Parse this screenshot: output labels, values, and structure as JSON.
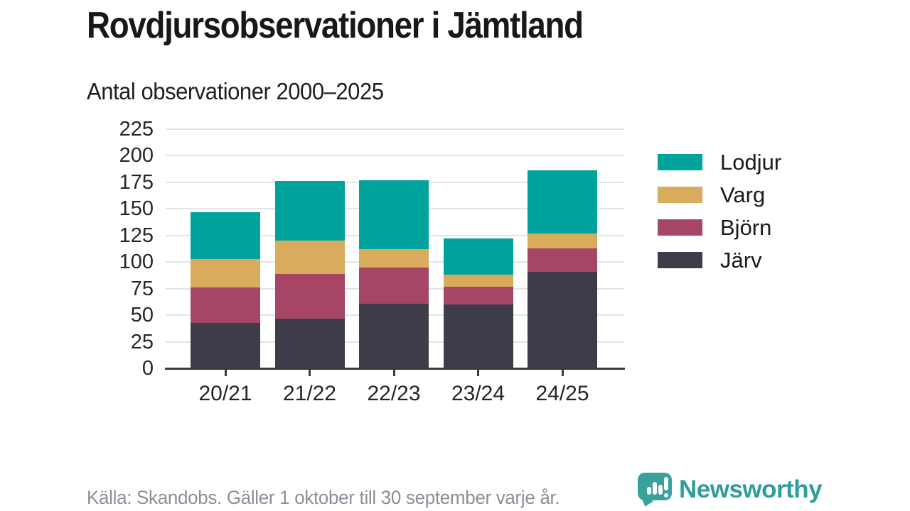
{
  "header": {
    "title": "Rovdjursobservationer i Jämtland",
    "subtitle": "Antal observationer 2000–2025"
  },
  "footer": {
    "source": "Källa: Skandobs. Gäller 1 oktober till 30 september varje år."
  },
  "logo": {
    "text": "Newsworthy",
    "icon": "bar-chart-speech-bubble-icon",
    "color": "#2f9d99"
  },
  "colors": {
    "gridline": "#e4e4e4",
    "axis": "#3a3a3a",
    "teal": "#00a39b",
    "gold": "#d9ab5d",
    "maroon": "#a64564",
    "dark_slate": "#3f3c4a"
  },
  "chart_data": {
    "type": "bar",
    "stacked": true,
    "title": "Rovdjursobservationer i Jämtland",
    "subtitle": "Antal observationer 2000–2025",
    "categories": [
      "20/21",
      "21/22",
      "22/23",
      "23/24",
      "24/25"
    ],
    "series": [
      {
        "name": "Järv",
        "color": "#3f3c4a",
        "values": [
          43,
          47,
          61,
          60,
          91
        ]
      },
      {
        "name": "Björn",
        "color": "#a64564",
        "values": [
          33,
          42,
          34,
          17,
          22
        ]
      },
      {
        "name": "Varg",
        "color": "#d9ab5d",
        "values": [
          27,
          31,
          17,
          11,
          14
        ]
      },
      {
        "name": "Lodjur",
        "color": "#00a39b",
        "values": [
          44,
          56,
          65,
          34,
          59
        ]
      }
    ],
    "totals": [
      147,
      176,
      177,
      122,
      186
    ],
    "y_ticks": [
      0,
      25,
      50,
      75,
      100,
      125,
      150,
      175,
      200,
      225
    ],
    "ylim": [
      0,
      225
    ],
    "xlabel": "",
    "ylabel": "",
    "grid": "horizontal",
    "legend_position": "right",
    "legend_order": [
      "Lodjur",
      "Varg",
      "Björn",
      "Järv"
    ]
  }
}
